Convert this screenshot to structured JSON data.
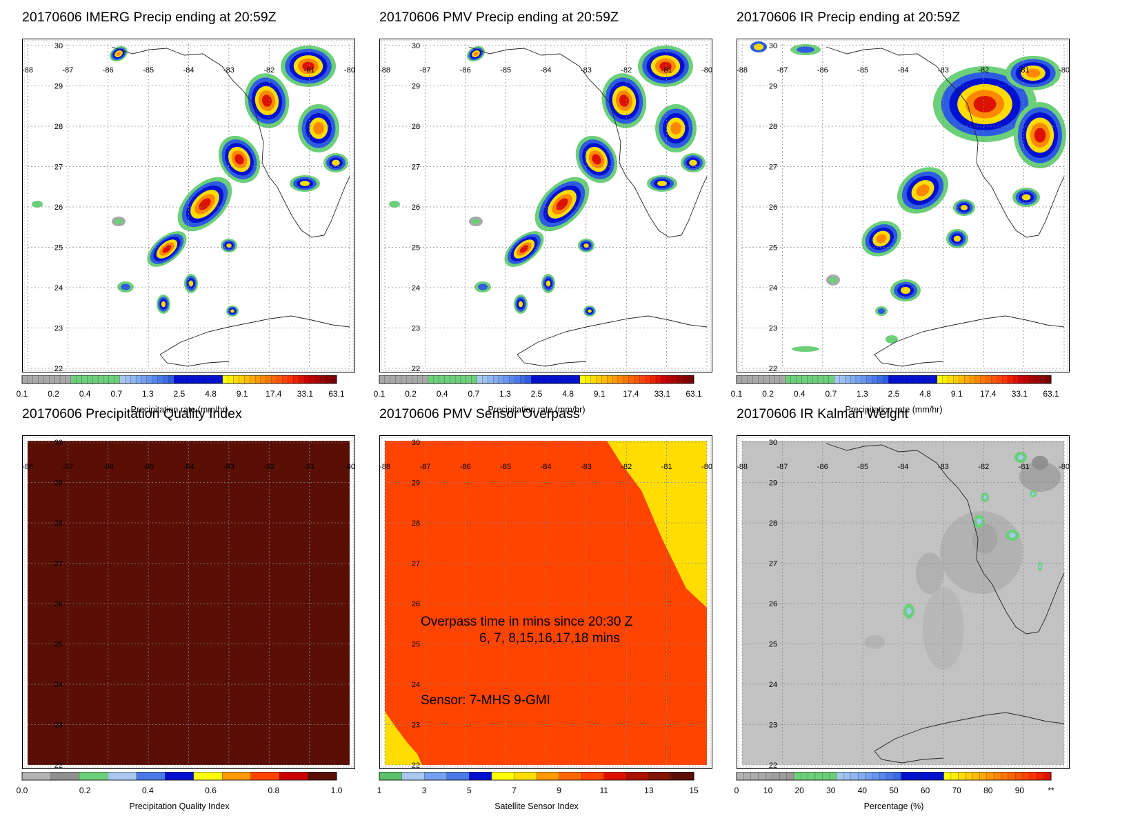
{
  "panels": [
    {
      "title": "20170606 IMERG Precip ending at 20:59Z",
      "type": "precip",
      "cb": "precip"
    },
    {
      "title": "20170606 PMV Precip ending at 20:59Z",
      "type": "precip",
      "cb": "precip"
    },
    {
      "title": "20170606 IR Precip ending at 20:59Z",
      "type": "precip_ir",
      "cb": "precip"
    },
    {
      "title": "20170606 Precipitation Quality Index",
      "type": "quality",
      "cb": "quality"
    },
    {
      "title": "20170606 PMV Sensor Overpass",
      "type": "sensor",
      "cb": "sensor"
    },
    {
      "title": "20170606 IR Kalman Weight",
      "type": "kalman",
      "cb": "kalman"
    }
  ],
  "axes": {
    "lon_ticks": [
      "-88",
      "-87",
      "-86",
      "-85",
      "-84",
      "-83",
      "-82",
      "-81",
      "-80"
    ],
    "lat_ticks": [
      "30",
      "29",
      "28",
      "27",
      "26",
      "25",
      "24",
      "23",
      "22"
    ]
  },
  "colorbars": {
    "precip": {
      "title": "Precipitation rate (mm/hr)",
      "labels": [
        "0.1",
        "0.2",
        "0.4",
        "0.7",
        "1.3",
        "2.5",
        "4.8",
        "9.1",
        "17.4",
        "33.1",
        "63.1"
      ],
      "colors": [
        "#a8a8a8",
        "#a8a8a8",
        "#a8a8a8",
        "#a8a8a8",
        "#a8a8a8",
        "#a8a8a8",
        "#a8a8a8",
        "#a8a8a8",
        "#a8a8a8",
        "#6ccf7a",
        "#6ccf7a",
        "#6ccf7a",
        "#6ccf7a",
        "#6ccf7a",
        "#6ccf7a",
        "#6ccf7a",
        "#6ccf7a",
        "#6ccf7a",
        "#a8c8f0",
        "#9cc0f0",
        "#90b6f0",
        "#82acf0",
        "#74a0f0",
        "#6694f0",
        "#5886ec",
        "#4a78e8",
        "#3c6ae4",
        "#2e5ce0",
        "#0010d0",
        "#0010d0",
        "#0010d0",
        "#0010d0",
        "#0010d0",
        "#0010d0",
        "#0010d0",
        "#0010d0",
        "#0010d0",
        "#ffff00",
        "#ffee00",
        "#ffdd00",
        "#ffcc00",
        "#ffbb00",
        "#ffaa00",
        "#ff9900",
        "#ff8800",
        "#ff7700",
        "#ff6600",
        "#ff5500",
        "#ff4400",
        "#ff3300",
        "#ee2200",
        "#dd1100",
        "#cc0000",
        "#bb0000",
        "#aa0000",
        "#990000",
        "#880000",
        "#770000"
      ]
    },
    "quality": {
      "title": "Precipitation Quality Index",
      "labels": [
        "0.0",
        "0.2",
        "0.4",
        "0.6",
        "0.8",
        "1.0"
      ],
      "colors": [
        "#b4b4b4",
        "#909090",
        "#6ccf7a",
        "#a8c8f0",
        "#4a78e8",
        "#0010d0",
        "#ffff00",
        "#ff9900",
        "#ff4400",
        "#cc0000",
        "#5a0f05"
      ]
    },
    "sensor": {
      "title": "Satellite Sensor Index",
      "labels": [
        "1",
        "3",
        "5",
        "7",
        "9",
        "11",
        "13",
        "15"
      ],
      "colors": [
        "#5cbf6a",
        "#a8c8f0",
        "#74a0f0",
        "#4a78e8",
        "#0010d0",
        "#ffff00",
        "#ffdd00",
        "#ff9900",
        "#ff6600",
        "#ff4400",
        "#dd1100",
        "#aa1100",
        "#801500",
        "#5a0f05"
      ]
    },
    "kalman": {
      "title": "Percentage (%)",
      "labels": [
        "0",
        "10",
        "20",
        "30",
        "40",
        "50",
        "60",
        "70",
        "80",
        "90",
        "**"
      ],
      "colors": [
        "#b4b4b4",
        "#b0b0b0",
        "#acacac",
        "#a8a8a8",
        "#a4a4a4",
        "#a0a0a0",
        "#9c9c9c",
        "#989898",
        "#6ccf7a",
        "#6ccf7a",
        "#6ccf7a",
        "#6ccf7a",
        "#6ccf7a",
        "#6ccf7a",
        "#a8c8f0",
        "#9cc0f0",
        "#90b6f0",
        "#82acf0",
        "#74a0f0",
        "#6694f0",
        "#5886ec",
        "#4a78e8",
        "#3c6ae4",
        "#0010d0",
        "#0010d0",
        "#0010d0",
        "#0010d0",
        "#0010d0",
        "#0010d0",
        "#ffff00",
        "#ffee00",
        "#ffdd00",
        "#ffcc00",
        "#ffbb00",
        "#ffaa00",
        "#ff9900",
        "#ff8800",
        "#ff7700",
        "#ff6600",
        "#ff5500",
        "#ff4400",
        "#ff3300",
        "#ee2200",
        "#dd1100"
      ]
    }
  },
  "overpass": {
    "line1": "Overpass time in mins since 20:30 Z",
    "line2": "6, 7, 8,15,16,17,18 mins",
    "line3": "Sensor:   7-MHS  9-GMI"
  },
  "colors": {
    "quality_fill": "#5a0f05",
    "sensor_orange": "#ff4400",
    "sensor_yellow": "#ffdd00",
    "kalman_gray": "#c2c2c2"
  }
}
